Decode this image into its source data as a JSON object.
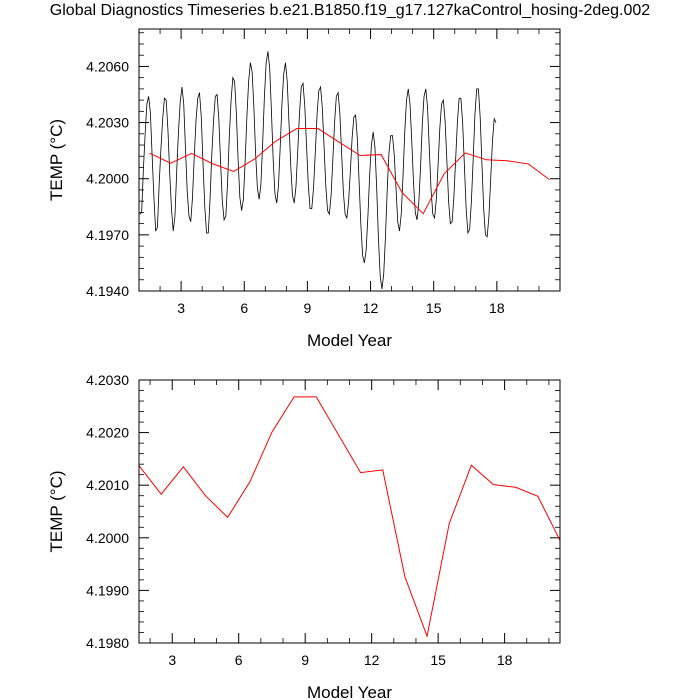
{
  "title": "Global Diagnostics Timeseries b.e21.B1850.f19_g17.127kaControl_hosing-2deg.002",
  "chart_data": [
    {
      "type": "line",
      "xlabel": "Model Year",
      "ylabel": "TEMP (°C)",
      "xlim": [
        1,
        21
      ],
      "ylim": [
        4.194,
        4.208
      ],
      "xticks": [
        3,
        6,
        9,
        12,
        15,
        18
      ],
      "xtick_labels": [
        "3",
        "6",
        "9",
        "12",
        "15",
        "18"
      ],
      "yticks": [
        4.194,
        4.197,
        4.2,
        4.203,
        4.206
      ],
      "ytick_labels": [
        "4.1940",
        "4.1970",
        "4.2000",
        "4.2030",
        "4.2060"
      ],
      "series": [
        {
          "color": "#000000",
          "style": "monthly",
          "x_start": 1.0417,
          "x_step": 0.08333,
          "values": [
            4.1981,
            4.1982,
            4.2005,
            4.2024,
            4.204,
            4.2044,
            4.2035,
            4.2012,
            4.199,
            4.1972,
            4.1974,
            4.1997,
            4.2016,
            4.2032,
            4.2043,
            4.2042,
            4.2026,
            4.2003,
            4.1984,
            4.1972,
            4.198,
            4.2004,
            4.2025,
            4.2041,
            4.2049,
            4.204,
            4.2016,
            4.1993,
            4.198,
            4.1977,
            4.199,
            4.2012,
            4.2031,
            4.2043,
            4.2046,
            4.2033,
            4.2008,
            4.1985,
            4.1971,
            4.1971,
            4.1989,
            4.2013,
            4.2031,
            4.2044,
            4.2045,
            4.2032,
            4.2009,
            4.1988,
            4.1978,
            4.198,
            4.1998,
            4.2023,
            4.2042,
            4.2054,
            4.2052,
            4.2035,
            4.201,
            4.199,
            4.1983,
            4.1989,
            4.2009,
            4.2033,
            4.2052,
            4.2062,
            4.2057,
            4.2038,
            4.2013,
            4.1995,
            4.1989,
            4.1997,
            4.2019,
            4.2044,
            4.2062,
            4.2068,
            4.2059,
            4.2036,
            4.201,
            4.1992,
            4.1987,
            4.1996,
            4.2017,
            4.204,
            4.2056,
            4.2062,
            4.2052,
            4.203,
            4.2007,
            4.1991,
            4.1987,
            4.1996,
            4.2015,
            4.2035,
            4.2049,
            4.2051,
            4.2039,
            4.2018,
            4.1997,
            4.1984,
            4.1984,
            4.1995,
            4.2014,
            4.2034,
            4.2047,
            4.2049,
            4.2038,
            4.2017,
            4.1996,
            4.1983,
            4.1981,
            4.1991,
            4.201,
            4.203,
            4.2044,
            4.2046,
            4.2035,
            4.2014,
            4.1993,
            4.1981,
            4.1979,
            4.1988,
            4.2004,
            4.2022,
            4.2033,
            4.2034,
            4.2021,
            4.1998,
            4.1975,
            4.1959,
            4.1955,
            4.1962,
            4.198,
            4.2002,
            4.2018,
            4.2025,
            4.2017,
            4.1995,
            4.1968,
            4.1948,
            4.1941,
            4.1949,
            4.1969,
            4.1994,
            4.2014,
            4.2023,
            4.2023,
            4.2013,
            4.1995,
            4.1977,
            4.1972,
            4.1981,
            4.2001,
            4.2025,
            4.2042,
            4.2048,
            4.204,
            4.202,
            4.1998,
            4.1982,
            4.1978,
            4.1987,
            4.2006,
            4.2029,
            4.2044,
            4.2048,
            4.2038,
            4.2016,
            4.1994,
            4.1981,
            4.1979,
            4.1989,
            4.2007,
            4.2027,
            4.204,
            4.2042,
            4.2031,
            4.201,
            4.1988,
            4.1976,
            4.1977,
            4.199,
            4.201,
            4.203,
            4.2043,
            4.2043,
            4.203,
            4.2007,
            4.1984,
            4.1971,
            4.1973,
            4.1988,
            4.201,
            4.2034,
            4.2048,
            4.2048,
            4.2033,
            4.2008,
            4.1984,
            4.197,
            4.1969,
            4.198,
            4.2,
            4.202,
            4.2032,
            4.203
          ]
        },
        {
          "color": "#ff0000",
          "style": "annual",
          "x": [
            1.5,
            2.5,
            3.5,
            4.5,
            5.5,
            6.5,
            7.5,
            8.5,
            9.5,
            10.5,
            11.5,
            12.5,
            13.5,
            14.5,
            15.5,
            16.5,
            17.5,
            18.5,
            19.5,
            20.5
          ],
          "values": [
            4.20137,
            4.20083,
            4.20135,
            4.2008,
            4.20039,
            4.20106,
            4.20201,
            4.20268,
            4.20268,
            4.20196,
            4.20124,
            4.20129,
            4.19926,
            4.19813,
            4.20027,
            4.20138,
            4.20101,
            4.20096,
            4.20079,
            4.19995
          ]
        }
      ]
    },
    {
      "type": "line",
      "xlabel": "Model Year",
      "ylabel": "TEMP (°C)",
      "xlim": [
        1.5,
        20.5
      ],
      "ylim": [
        4.198,
        4.203
      ],
      "xticks": [
        3,
        6,
        9,
        12,
        15,
        18
      ],
      "xtick_labels": [
        "3",
        "6",
        "9",
        "12",
        "15",
        "18"
      ],
      "yticks": [
        4.198,
        4.199,
        4.2,
        4.201,
        4.202,
        4.203
      ],
      "ytick_labels": [
        "4.1980",
        "4.1990",
        "4.2000",
        "4.2010",
        "4.2020",
        "4.2030"
      ],
      "series": [
        {
          "color": "#ff0000",
          "style": "annual",
          "x": [
            1.5,
            2.5,
            3.5,
            4.5,
            5.5,
            6.5,
            7.5,
            8.5,
            9.5,
            10.5,
            11.5,
            12.5,
            13.5,
            14.5,
            15.5,
            16.5,
            17.5,
            18.5,
            19.5,
            20.5
          ],
          "values": [
            4.20137,
            4.20083,
            4.20135,
            4.2008,
            4.20039,
            4.20106,
            4.20201,
            4.20268,
            4.20268,
            4.20196,
            4.20124,
            4.20129,
            4.19926,
            4.19813,
            4.20027,
            4.20138,
            4.20101,
            4.20096,
            4.20079,
            4.19995
          ]
        }
      ]
    }
  ]
}
